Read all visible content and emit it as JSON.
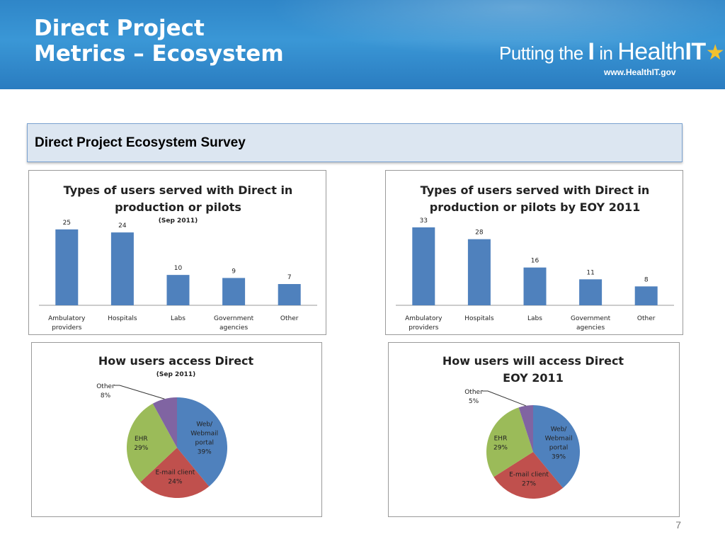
{
  "slide": {
    "title_line1": "Direct Project",
    "title_line2": "Metrics – Ecosystem",
    "page_number": "7"
  },
  "logo": {
    "text_a": "Putting the ",
    "text_b": "I",
    "text_c": " in ",
    "text_d": "Health",
    "text_e": "IT",
    "url": "www.HealthIT.gov",
    "icon": "star-icon"
  },
  "section": {
    "heading": "Direct Project Ecosystem Survey"
  },
  "colors": {
    "bar": "#4f81bd",
    "web": "#4f81bd",
    "email": "#c0504d",
    "ehr": "#9bbb59",
    "other": "#8064a2"
  },
  "chart_data": [
    {
      "type": "bar",
      "title_line1": "Types of users served with Direct in",
      "title_line2": "production or pilots",
      "subtitle": "(Sep 2011)",
      "categories": [
        [
          "Ambulatory",
          "providers"
        ],
        [
          "Hospitals"
        ],
        [
          "Labs"
        ],
        [
          "Government",
          "agencies"
        ],
        [
          "Other"
        ]
      ],
      "values": [
        25,
        24,
        10,
        9,
        7
      ],
      "ylim": [
        0,
        28
      ]
    },
    {
      "type": "bar",
      "title_line1": "Types of users served with Direct in",
      "title_line2": "production or pilots by EOY 2011",
      "subtitle": "",
      "categories": [
        [
          "Ambulatory",
          "providers"
        ],
        [
          "Hospitals"
        ],
        [
          "Labs"
        ],
        [
          "Government",
          "agencies"
        ],
        [
          "Other"
        ]
      ],
      "values": [
        33,
        28,
        16,
        11,
        8
      ],
      "ylim": [
        0,
        36
      ]
    },
    {
      "type": "pie",
      "title_line1": "How users access Direct",
      "title_line2": "",
      "subtitle": "(Sep 2011)",
      "slices": [
        {
          "label": [
            "Web/",
            "Webmail",
            "portal"
          ],
          "pct_label": "39%",
          "value": 39,
          "color": "#4f81bd"
        },
        {
          "label": [
            "E-mail client"
          ],
          "pct_label": "24%",
          "value": 24,
          "color": "#c0504d"
        },
        {
          "label": [
            "EHR"
          ],
          "pct_label": "29%",
          "value": 29,
          "color": "#9bbb59"
        },
        {
          "label": [
            "Other"
          ],
          "pct_label": "8%",
          "value": 8,
          "color": "#8064a2"
        }
      ]
    },
    {
      "type": "pie",
      "title_line1": "How users will access Direct",
      "title_line2": "EOY 2011",
      "subtitle": "",
      "slices": [
        {
          "label": [
            "Web/",
            "Webmail",
            "portal"
          ],
          "pct_label": "39%",
          "value": 39,
          "color": "#4f81bd"
        },
        {
          "label": [
            "E-mail client"
          ],
          "pct_label": "27%",
          "value": 27,
          "color": "#c0504d"
        },
        {
          "label": [
            "EHR"
          ],
          "pct_label": "29%",
          "value": 29,
          "color": "#9bbb59"
        },
        {
          "label": [
            "Other"
          ],
          "pct_label": "5%",
          "value": 5,
          "color": "#8064a2"
        }
      ]
    }
  ]
}
